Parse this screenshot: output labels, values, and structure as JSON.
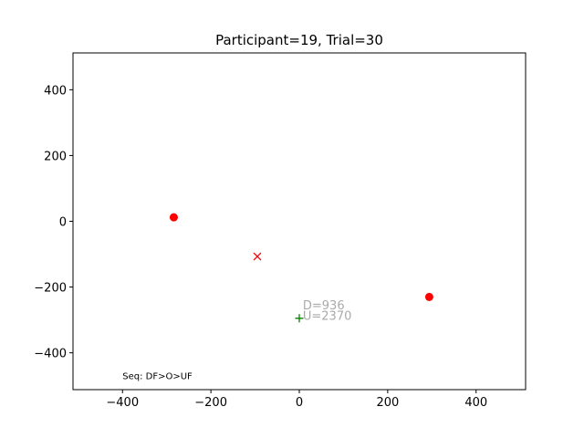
{
  "chart_data": {
    "type": "scatter",
    "title": "Participant=19, Trial=30",
    "xlabel": "",
    "ylabel": "",
    "xlim": [
      -512,
      512
    ],
    "ylim": [
      -512,
      512
    ],
    "xticks": [
      -400,
      -200,
      0,
      200,
      400
    ],
    "yticks": [
      -400,
      -200,
      0,
      200,
      400
    ],
    "xtick_labels": [
      "−400",
      "−200",
      "0",
      "200",
      "400"
    ],
    "ytick_labels": [
      "−400",
      "−200",
      "0",
      "200",
      "400"
    ],
    "grid": false,
    "points": [
      {
        "kind": "target-dot",
        "marker": "circle",
        "color": "#ff0000",
        "x": -284,
        "y": 12
      },
      {
        "kind": "target-dot",
        "marker": "circle",
        "color": "#ff0000",
        "x": 294,
        "y": -230
      },
      {
        "kind": "cross",
        "marker": "x",
        "color": "#ff0000",
        "x": -95,
        "y": -107
      },
      {
        "kind": "origin",
        "marker": "plus",
        "color": "#008000",
        "x": 0,
        "y": -295
      }
    ],
    "annotations": [
      {
        "text": "D=936",
        "x": 8,
        "y": -268,
        "color": "#aaaaaa"
      },
      {
        "text": "U=2370",
        "x": 8,
        "y": -300,
        "color": "#aaaaaa"
      }
    ],
    "footnote": {
      "text": "Seq: DF>O>UF",
      "x": -400,
      "y": -480
    }
  }
}
